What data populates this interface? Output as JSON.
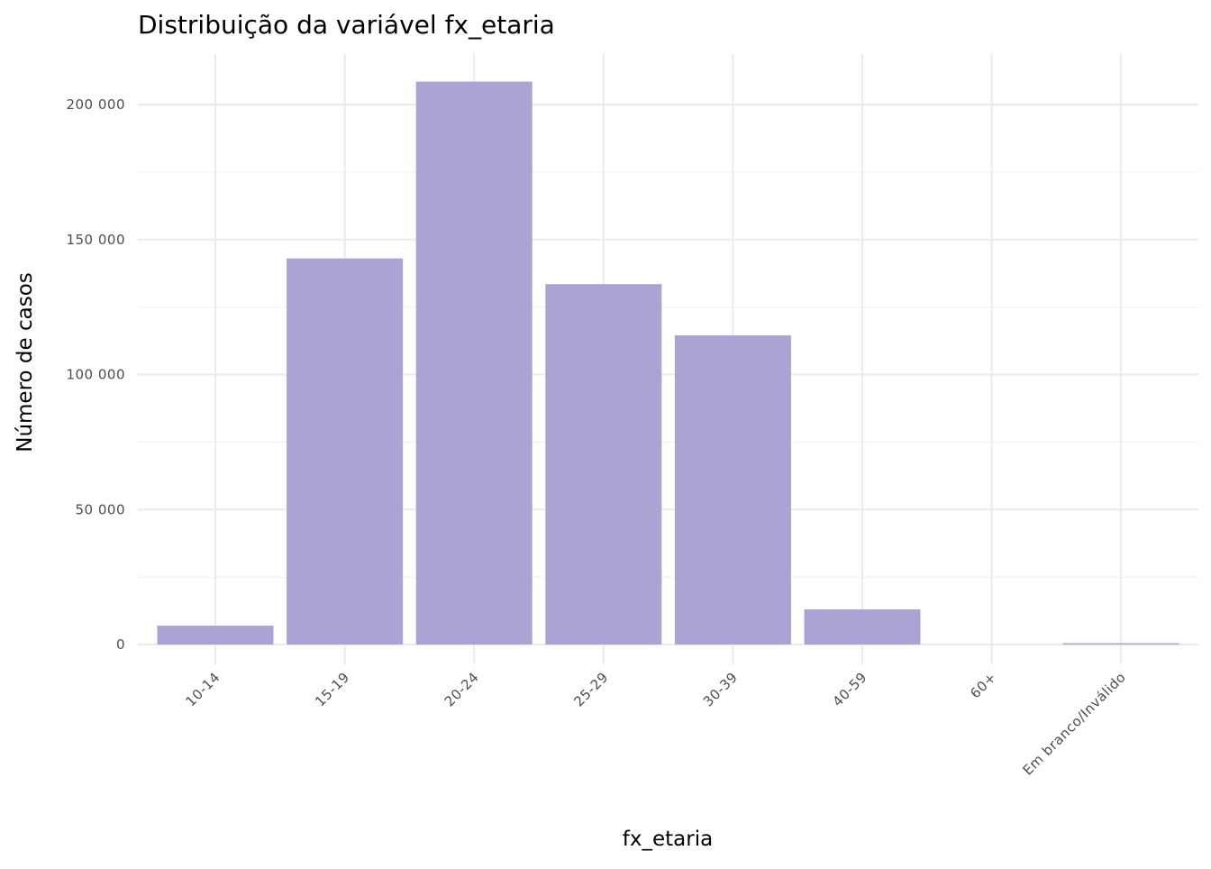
{
  "chart_data": {
    "type": "bar",
    "title": "Distribuição da variável  fx_etaria",
    "xlabel": "fx_etaria",
    "ylabel": "Número de casos",
    "categories": [
      "10-14",
      "15-19",
      "20-24",
      "25-29",
      "30-39",
      "40-59",
      "60+",
      "Em branco/Inválido"
    ],
    "values": [
      7000,
      143000,
      208500,
      133500,
      114500,
      13000,
      0,
      300
    ],
    "ylim": [
      0,
      218000
    ],
    "y_ticks": [
      0,
      50000,
      100000,
      150000,
      200000
    ],
    "y_tick_labels": [
      "0",
      "50 000",
      "100 000",
      "150 000",
      "200 000"
    ],
    "grid": true,
    "legend": "none",
    "x_tick_rotation": -45,
    "bar_color": "#ABA3D3",
    "grid_color": "#EBEBEB",
    "background_color": "#FFFFFF"
  }
}
